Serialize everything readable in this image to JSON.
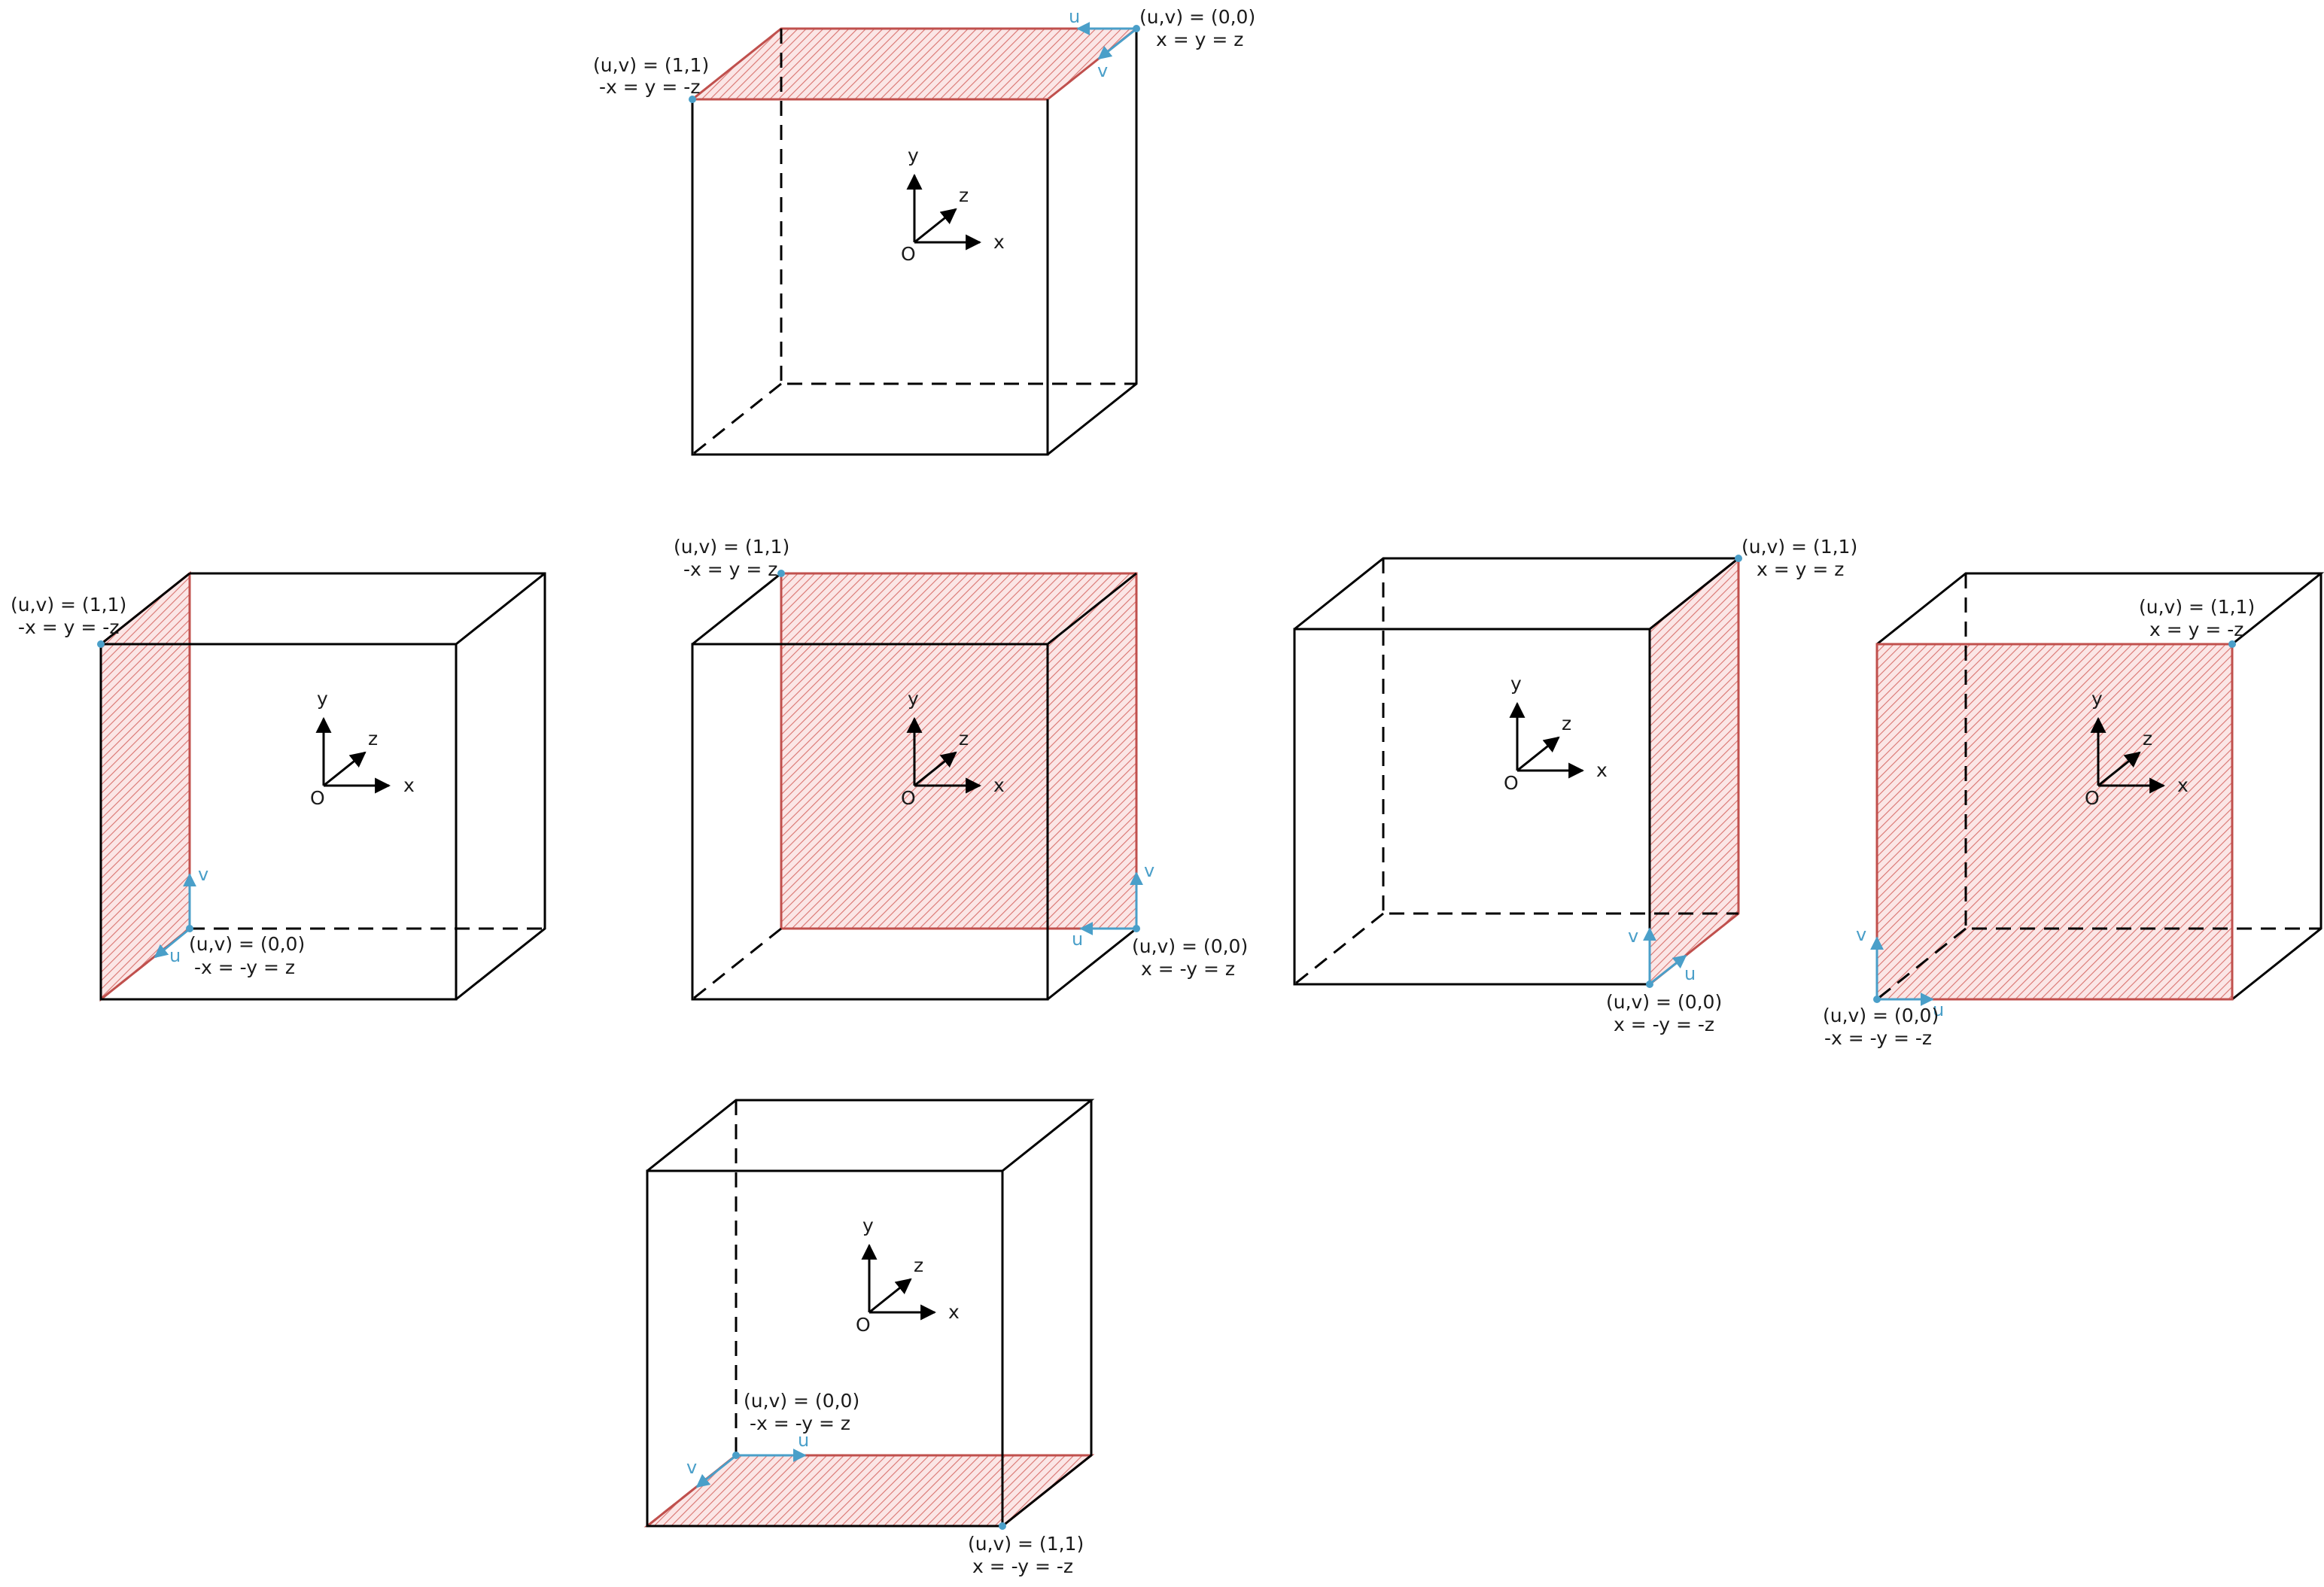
{
  "colors": {
    "edge": "#000000",
    "face": "#c0504d",
    "uv": "#4a9fc9"
  },
  "axis_labels": {
    "x": "x",
    "y": "y",
    "z": "z",
    "origin": "O"
  },
  "uv_labels": {
    "u": "u",
    "v": "v"
  },
  "faces": [
    {
      "id": "top",
      "p00": {
        "uv": "(u,v) = (0,0)",
        "xyz": "x = y = z"
      },
      "p11": {
        "uv": "(u,v) = (1,1)",
        "xyz": "-x = y = -z"
      }
    },
    {
      "id": "left",
      "p00": {
        "uv": "(u,v) = (0,0)",
        "xyz": "-x = -y = z"
      },
      "p11": {
        "uv": "(u,v) = (1,1)",
        "xyz": "-x = y = -z"
      }
    },
    {
      "id": "back",
      "p00": {
        "uv": "(u,v) = (0,0)",
        "xyz": "x = -y = z"
      },
      "p11": {
        "uv": "(u,v) = (1,1)",
        "xyz": "-x = y = z"
      }
    },
    {
      "id": "right",
      "p00": {
        "uv": "(u,v) = (0,0)",
        "xyz": "x = -y = -z"
      },
      "p11": {
        "uv": "(u,v) = (1,1)",
        "xyz": "x = y = z"
      }
    },
    {
      "id": "front",
      "p00": {
        "uv": "(u,v) = (0,0)",
        "xyz": "-x = -y = -z"
      },
      "p11": {
        "uv": "(u,v) = (1,1)",
        "xyz": "x = y = -z"
      }
    },
    {
      "id": "bottom",
      "p00": {
        "uv": "(u,v) = (0,0)",
        "xyz": "-x = -y = z"
      },
      "p11": {
        "uv": "(u,v) = (1,1)",
        "xyz": "x = -y = -z"
      }
    }
  ]
}
